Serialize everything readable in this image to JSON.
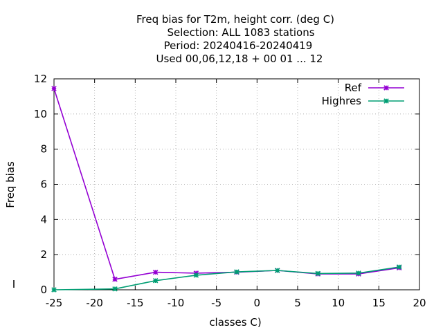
{
  "chart_data": {
    "type": "line",
    "title_lines": [
      "Freq bias  for T2m, height corr. (deg C)",
      "Selection: ALL    1083 stations",
      "Period: 20240416-20240419",
      "Used  00,06,12,18 + 00 01 ... 12"
    ],
    "xlabel": "classes C)",
    "ylabel": "Freq bias",
    "xlim": [
      -25,
      20
    ],
    "ylim": [
      0,
      12
    ],
    "xticks": [
      -25,
      -20,
      -15,
      -10,
      -5,
      0,
      5,
      10,
      15,
      20
    ],
    "yticks": [
      0,
      2,
      4,
      6,
      8,
      10,
      12
    ],
    "grid": true,
    "legend_position": "top-right",
    "series": [
      {
        "name": "Ref",
        "color": "#9400d3",
        "x": [
          -25,
          -17.5,
          -12.5,
          -7.5,
          -2.5,
          2.5,
          7.5,
          12.5,
          17.5
        ],
        "y": [
          11.45,
          0.6,
          1.0,
          0.95,
          1.0,
          1.1,
          0.9,
          0.9,
          1.25
        ]
      },
      {
        "name": "Highres",
        "color": "#009e73",
        "x": [
          -25,
          -17.5,
          -12.5,
          -7.5,
          -2.5,
          2.5,
          7.5,
          12.5,
          17.5
        ],
        "y": [
          0.0,
          0.05,
          0.52,
          0.83,
          1.02,
          1.1,
          0.93,
          0.95,
          1.3
        ]
      }
    ]
  }
}
